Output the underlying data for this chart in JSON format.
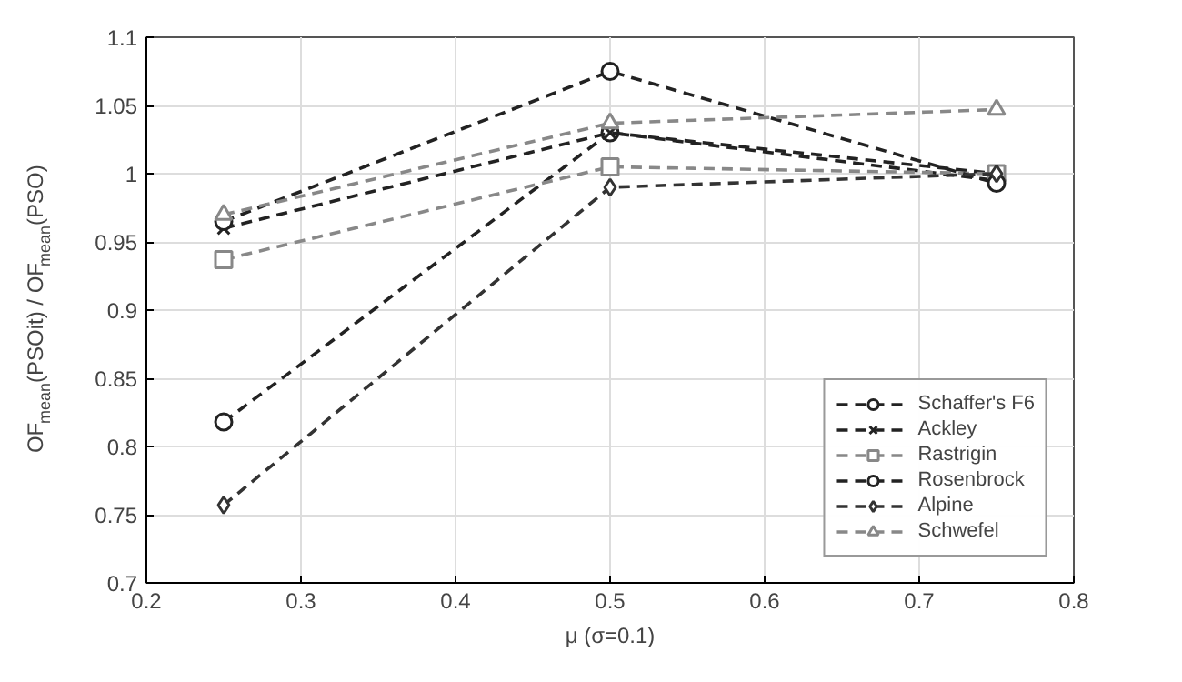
{
  "chart_data": {
    "type": "line",
    "xlabel": "μ (σ=0.1)",
    "ylabel": "OF$_{mean}$(PSOit) / OF$_{mean}$(PSO)",
    "x": [
      0.25,
      0.5,
      0.75
    ],
    "series": [
      {
        "name": "Schaffer's F6",
        "color": "#222222",
        "marker": "circle",
        "values": [
          0.818,
          1.03,
          0.995
        ]
      },
      {
        "name": "Ackley",
        "color": "#222222",
        "marker": "cross",
        "values": [
          0.96,
          1.03,
          1.0
        ]
      },
      {
        "name": "Rastrigin",
        "color": "#888888",
        "marker": "square",
        "values": [
          0.937,
          1.005,
          1.0
        ]
      },
      {
        "name": "Rosenbrock",
        "color": "#222222",
        "marker": "circle",
        "values": [
          0.965,
          1.075,
          0.993
        ]
      },
      {
        "name": "Alpine",
        "color": "#333333",
        "marker": "diamond",
        "values": [
          0.757,
          0.99,
          1.0
        ]
      },
      {
        "name": "Schwefel",
        "color": "#888888",
        "marker": "triangle",
        "values": [
          0.97,
          1.037,
          1.047
        ]
      }
    ],
    "xlim": [
      0.2,
      0.8
    ],
    "xticks": [
      0.2,
      0.3,
      0.4,
      0.5,
      0.6,
      0.7,
      0.8
    ],
    "ylim": [
      0.7,
      1.1
    ],
    "yticks": [
      0.7,
      0.75,
      0.8,
      0.85,
      0.9,
      0.95,
      1,
      1.05,
      1.1
    ],
    "grid": true,
    "legend": "bottom right",
    "line_style": "dashed"
  }
}
